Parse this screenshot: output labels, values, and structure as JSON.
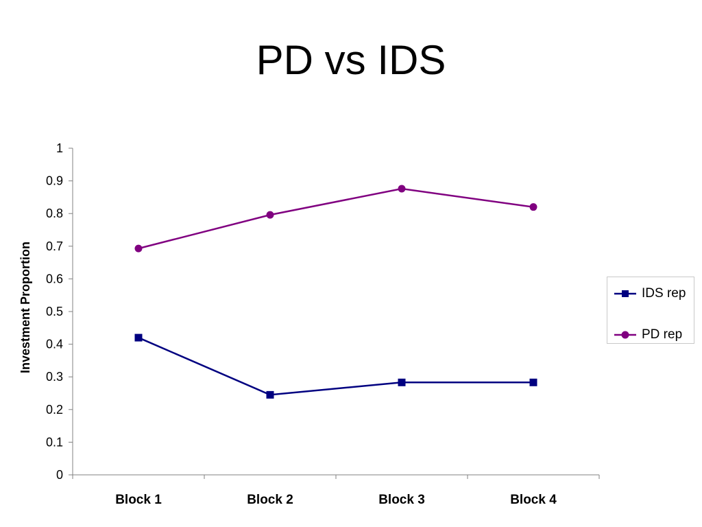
{
  "page": {
    "title": "PD vs IDS"
  },
  "chart_data": {
    "type": "line",
    "title": "PD vs IDS",
    "xlabel": "",
    "ylabel": "Investment Proportion",
    "categories": [
      "Block 1",
      "Block 2",
      "Block 3",
      "Block 4"
    ],
    "ylim": [
      0,
      1
    ],
    "yticks": [
      "0",
      "0.1",
      "0.2",
      "0.3",
      "0.4",
      "0.5",
      "0.6",
      "0.7",
      "0.8",
      "0.9",
      "1"
    ],
    "grid": false,
    "legend_position": "right",
    "series": [
      {
        "name": "IDS rep",
        "values": [
          0.42,
          0.245,
          0.283,
          0.283
        ],
        "color": "#000080",
        "marker": "square"
      },
      {
        "name": "PD rep",
        "values": [
          0.693,
          0.796,
          0.876,
          0.82
        ],
        "color": "#800080",
        "marker": "circle"
      }
    ]
  }
}
